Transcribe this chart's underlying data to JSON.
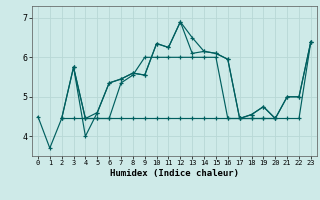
{
  "xlabel": "Humidex (Indice chaleur)",
  "ylabel": "",
  "bg_color": "#ceeae8",
  "line_color": "#005f5f",
  "grid_color": "#b8d8d5",
  "xlim": [
    -0.5,
    23.5
  ],
  "ylim": [
    3.5,
    7.3
  ],
  "yticks": [
    4,
    5,
    6,
    7
  ],
  "xticks": [
    0,
    1,
    2,
    3,
    4,
    5,
    6,
    7,
    8,
    9,
    10,
    11,
    12,
    13,
    14,
    15,
    16,
    17,
    18,
    19,
    20,
    21,
    22,
    23
  ],
  "lines": [
    {
      "x": [
        0,
        1,
        2,
        3,
        4,
        5,
        6,
        7,
        8,
        9,
        10,
        11,
        12,
        13,
        14,
        15,
        16,
        17,
        18,
        19,
        20,
        21,
        22,
        23
      ],
      "y": [
        4.5,
        3.7,
        4.45,
        5.75,
        4.0,
        4.6,
        5.35,
        5.45,
        5.6,
        5.55,
        6.35,
        6.25,
        6.9,
        6.5,
        6.15,
        6.1,
        5.95,
        4.45,
        4.55,
        4.75,
        4.45,
        5.0,
        5.0,
        6.4
      ]
    },
    {
      "x": [
        2,
        3,
        4,
        5,
        6,
        7,
        8,
        9,
        10,
        11,
        12,
        13,
        14,
        15,
        16,
        17,
        18,
        19,
        20,
        21,
        22,
        23
      ],
      "y": [
        4.45,
        5.75,
        4.45,
        4.45,
        4.45,
        4.45,
        4.45,
        4.45,
        4.45,
        4.45,
        4.45,
        4.45,
        4.45,
        4.45,
        4.45,
        4.45,
        4.45,
        4.45,
        4.45,
        4.45,
        4.45,
        6.4
      ]
    },
    {
      "x": [
        3,
        4,
        5,
        6,
        7,
        8,
        9,
        10,
        11,
        12,
        13,
        14,
        15,
        16,
        17,
        18,
        19,
        20,
        21,
        22,
        23
      ],
      "y": [
        5.75,
        4.45,
        4.6,
        5.35,
        5.45,
        5.6,
        5.55,
        6.35,
        6.25,
        6.9,
        6.1,
        6.15,
        6.1,
        5.95,
        4.45,
        4.55,
        4.75,
        4.45,
        5.0,
        5.0,
        6.4
      ]
    },
    {
      "x": [
        2,
        3,
        4,
        5,
        6,
        7,
        8,
        9,
        10,
        11,
        12,
        13,
        14,
        15,
        16,
        17,
        18,
        19,
        20
      ],
      "y": [
        4.45,
        4.45,
        4.45,
        4.45,
        4.45,
        5.35,
        5.55,
        6.0,
        6.0,
        6.0,
        6.0,
        6.0,
        6.0,
        6.0,
        4.45,
        4.45,
        4.45,
        4.45,
        4.45
      ]
    }
  ]
}
